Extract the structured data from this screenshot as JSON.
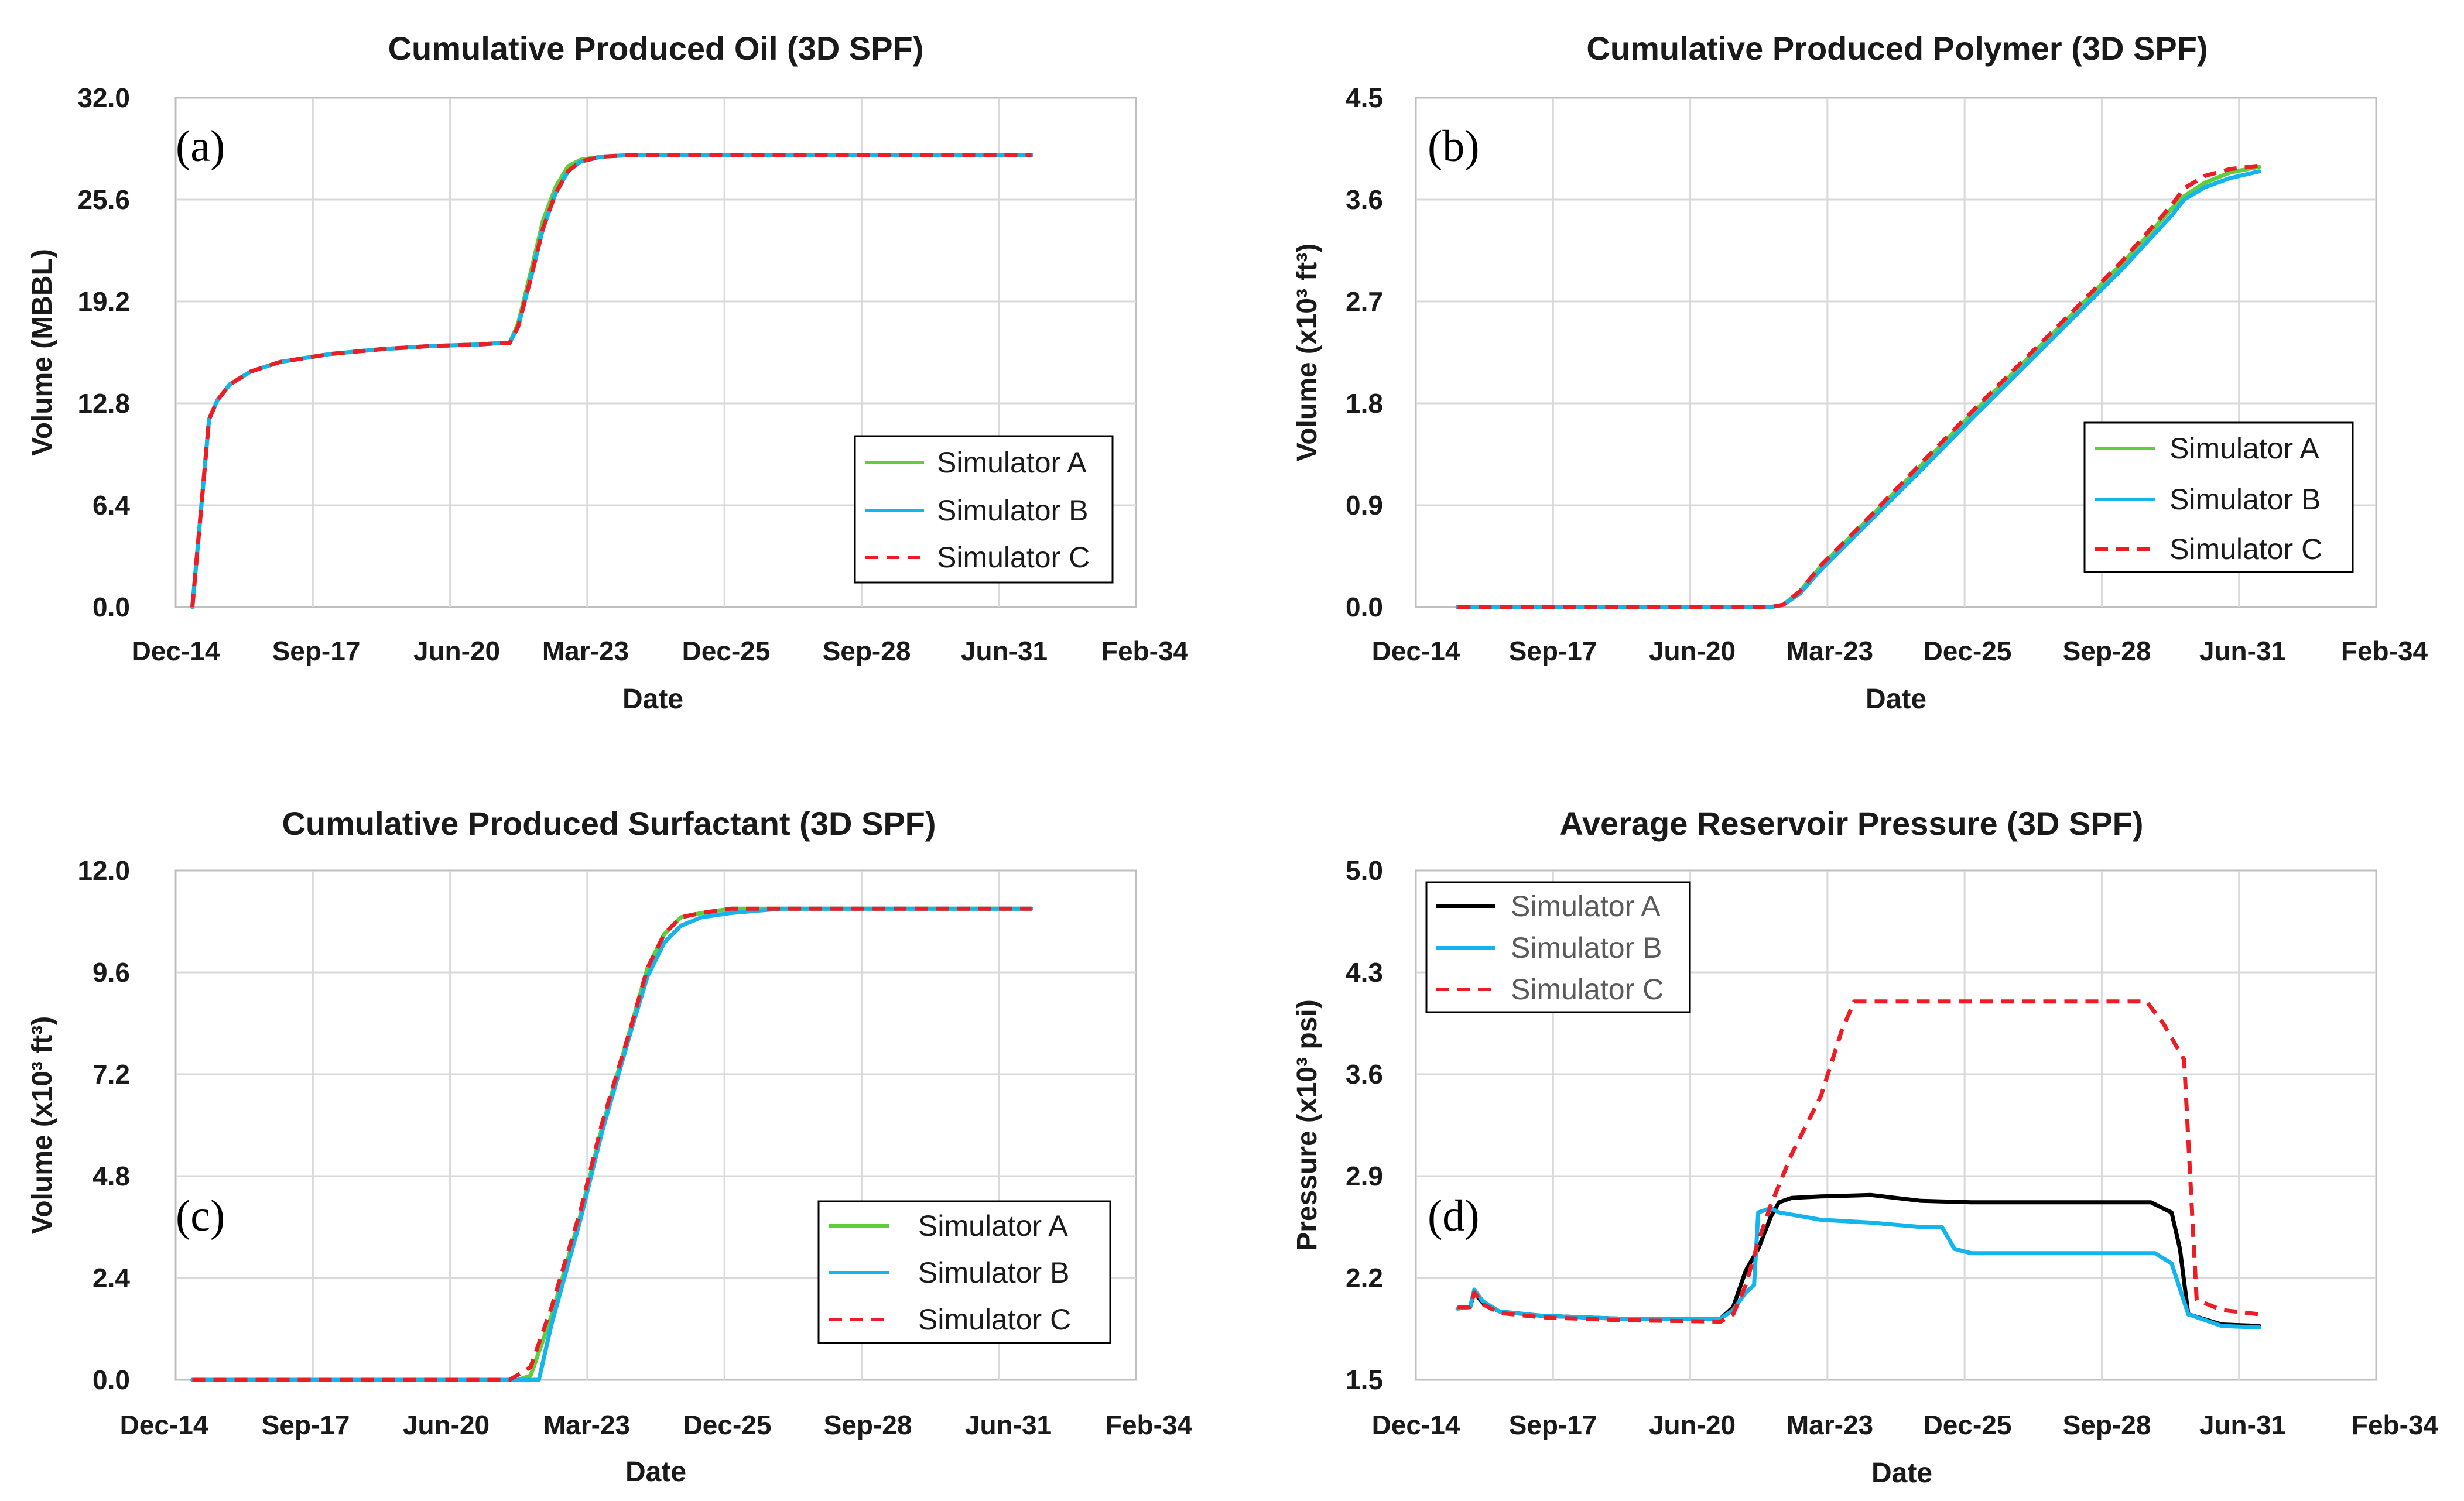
{
  "colors": {
    "simulator_a_green": "#5fce3c",
    "simulator_a_black": "#000000",
    "simulator_b": "#14b4ec",
    "simulator_c": "#ee1c24",
    "gridline": "#d9d9d9",
    "plot_border": "#bfbfbf"
  },
  "chart_data": [
    {
      "type": "line",
      "panel_label": "(a)",
      "title": "Cumulative Produced Oil (3D SPF)",
      "xlabel": "Date",
      "ylabel": "Volume (MBBL)",
      "x_ticks": [
        "Dec-14",
        "Sep-17",
        "Jun-20",
        "Mar-23",
        "Dec-25",
        "Sep-28",
        "Jun-31",
        "Feb-34"
      ],
      "y_ticks": [
        "0.0",
        "6.4",
        "12.8",
        "19.2",
        "25.6",
        "32.0"
      ],
      "xlim": [
        "2014-12",
        "2034-02"
      ],
      "ylim": [
        0,
        32
      ],
      "grid": true,
      "legend_position": "lower-right",
      "series": [
        {
          "name": "Simulator A",
          "style": "solid",
          "color_key": "simulator_a_green",
          "x": [
            "2015-04",
            "2015-08",
            "2015-10",
            "2016-01",
            "2016-06",
            "2017-01",
            "2018-01",
            "2019-01",
            "2020-01",
            "2021-01",
            "2021-06",
            "2021-08",
            "2021-10",
            "2022-01",
            "2022-04",
            "2022-07",
            "2022-10",
            "2023-01",
            "2023-06",
            "2024-01",
            "2025-01",
            "2026-01",
            "2027-01",
            "2028-01",
            "2029-01",
            "2030-01",
            "2031-01",
            "2032-01"
          ],
          "y": [
            0,
            11.8,
            13.0,
            14.0,
            14.8,
            15.4,
            15.9,
            16.2,
            16.4,
            16.5,
            16.6,
            16.6,
            17.8,
            21.0,
            24.3,
            26.4,
            27.7,
            28.1,
            28.3,
            28.4,
            28.4,
            28.4,
            28.4,
            28.4,
            28.4,
            28.4,
            28.4,
            28.4
          ]
        },
        {
          "name": "Simulator B",
          "style": "solid",
          "color_key": "simulator_b",
          "x": [
            "2015-04",
            "2015-08",
            "2015-10",
            "2016-01",
            "2016-06",
            "2017-01",
            "2018-01",
            "2019-01",
            "2020-01",
            "2021-01",
            "2021-06",
            "2021-08",
            "2021-10",
            "2022-01",
            "2022-04",
            "2022-07",
            "2022-10",
            "2023-01",
            "2023-06",
            "2024-01",
            "2025-01",
            "2026-01",
            "2027-01",
            "2028-01",
            "2029-01",
            "2030-01",
            "2031-01",
            "2032-01"
          ],
          "y": [
            0,
            11.8,
            13.0,
            14.0,
            14.8,
            15.4,
            15.9,
            16.2,
            16.4,
            16.5,
            16.6,
            16.6,
            17.6,
            20.6,
            23.8,
            26.0,
            27.4,
            28.0,
            28.3,
            28.4,
            28.4,
            28.4,
            28.4,
            28.4,
            28.4,
            28.4,
            28.4,
            28.4
          ]
        },
        {
          "name": "Simulator C",
          "style": "dashed",
          "color_key": "simulator_c",
          "x": [
            "2015-04",
            "2015-08",
            "2015-10",
            "2016-01",
            "2016-06",
            "2017-01",
            "2018-01",
            "2019-01",
            "2020-01",
            "2021-01",
            "2021-06",
            "2021-08",
            "2021-10",
            "2022-01",
            "2022-04",
            "2022-07",
            "2022-10",
            "2023-01",
            "2023-06",
            "2024-01",
            "2025-01",
            "2026-01",
            "2027-01",
            "2028-01",
            "2029-01",
            "2030-01",
            "2031-01",
            "2032-01"
          ],
          "y": [
            0,
            11.8,
            13.0,
            14.0,
            14.8,
            15.4,
            15.9,
            16.2,
            16.4,
            16.5,
            16.6,
            16.6,
            17.6,
            20.6,
            23.8,
            26.0,
            27.4,
            28.0,
            28.3,
            28.4,
            28.4,
            28.4,
            28.4,
            28.4,
            28.4,
            28.4,
            28.4,
            28.4
          ]
        }
      ]
    },
    {
      "type": "line",
      "panel_label": "(b)",
      "title": "Cumulative Produced Polymer (3D SPF)",
      "xlabel": "Date",
      "ylabel": "Volume (x10³ ft³)",
      "x_ticks": [
        "Dec-14",
        "Sep-17",
        "Jun-20",
        "Mar-23",
        "Dec-25",
        "Sep-28",
        "Jun-31",
        "Feb-34"
      ],
      "y_ticks": [
        "0.0",
        "0.9",
        "1.8",
        "2.7",
        "3.6",
        "4.5"
      ],
      "xlim": [
        "2014-12",
        "2034-02"
      ],
      "ylim": [
        0,
        4.5
      ],
      "grid": true,
      "legend_position": "middle-right",
      "series": [
        {
          "name": "Simulator A",
          "style": "solid",
          "color_key": "simulator_a_green",
          "x": [
            "2015-10",
            "2019-01",
            "2022-01",
            "2022-04",
            "2022-08",
            "2023-01",
            "2024-01",
            "2025-01",
            "2026-01",
            "2027-01",
            "2028-01",
            "2029-01",
            "2029-07",
            "2030-01",
            "2030-04",
            "2030-09",
            "2031-03",
            "2031-10"
          ],
          "y": [
            0,
            0,
            0,
            0.02,
            0.14,
            0.36,
            0.8,
            1.25,
            1.7,
            2.14,
            2.58,
            3.03,
            3.27,
            3.52,
            3.63,
            3.75,
            3.84,
            3.89
          ]
        },
        {
          "name": "Simulator B",
          "style": "solid",
          "color_key": "simulator_b",
          "x": [
            "2015-10",
            "2019-01",
            "2022-01",
            "2022-04",
            "2022-08",
            "2023-01",
            "2024-01",
            "2025-01",
            "2026-01",
            "2027-01",
            "2028-01",
            "2029-01",
            "2029-07",
            "2030-01",
            "2030-04",
            "2030-09",
            "2031-03",
            "2031-10"
          ],
          "y": [
            0,
            0,
            0,
            0.02,
            0.12,
            0.33,
            0.77,
            1.21,
            1.66,
            2.1,
            2.54,
            2.98,
            3.22,
            3.46,
            3.6,
            3.71,
            3.79,
            3.85
          ]
        },
        {
          "name": "Simulator C",
          "style": "dashed",
          "color_key": "simulator_c",
          "x": [
            "2015-10",
            "2019-01",
            "2022-01",
            "2022-04",
            "2022-08",
            "2023-01",
            "2024-01",
            "2025-01",
            "2026-01",
            "2027-01",
            "2028-01",
            "2029-01",
            "2029-07",
            "2030-01",
            "2030-04",
            "2030-09",
            "2031-03",
            "2031-10"
          ],
          "y": [
            0,
            0,
            0,
            0.02,
            0.14,
            0.37,
            0.81,
            1.27,
            1.72,
            2.16,
            2.6,
            3.05,
            3.3,
            3.55,
            3.7,
            3.81,
            3.87,
            3.9
          ]
        }
      ]
    },
    {
      "type": "line",
      "panel_label": "(c)",
      "title": "Cumulative Produced Surfactant (3D SPF)",
      "xlabel": "Date",
      "ylabel": "Volume (x10³ ft³)",
      "x_ticks": [
        "Dec-14",
        "Sep-17",
        "Jun-20",
        "Mar-23",
        "Dec-25",
        "Sep-28",
        "Jun-31",
        "Feb-34"
      ],
      "y_ticks": [
        "0.0",
        "2.4",
        "4.8",
        "7.2",
        "9.6",
        "12.0"
      ],
      "xlim": [
        "2014-12",
        "2034-02"
      ],
      "ylim": [
        0,
        12
      ],
      "grid": true,
      "legend_position": "lower-right",
      "series": [
        {
          "name": "Simulator A",
          "style": "solid",
          "color_key": "simulator_a_green",
          "x": [
            "2015-04",
            "2019-01",
            "2021-10",
            "2022-01",
            "2022-06",
            "2023-01",
            "2023-06",
            "2024-01",
            "2024-05",
            "2024-09",
            "2025-01",
            "2025-06",
            "2026-01",
            "2027-01",
            "2028-01",
            "2029-01",
            "2030-01",
            "2031-01",
            "2032-01"
          ],
          "y": [
            0,
            0,
            0,
            0.1,
            1.5,
            3.9,
            5.9,
            8.3,
            9.7,
            10.5,
            10.9,
            11.0,
            11.1,
            11.1,
            11.1,
            11.1,
            11.1,
            11.1,
            11.1
          ]
        },
        {
          "name": "Simulator B",
          "style": "solid",
          "color_key": "simulator_b",
          "x": [
            "2015-04",
            "2019-01",
            "2022-01",
            "2022-03",
            "2022-06",
            "2023-01",
            "2023-06",
            "2024-01",
            "2024-05",
            "2024-09",
            "2025-01",
            "2025-06",
            "2026-01",
            "2027-01",
            "2028-01",
            "2029-01",
            "2030-01",
            "2031-01",
            "2032-01"
          ],
          "y": [
            0,
            0,
            0,
            0,
            1.3,
            3.8,
            5.8,
            8.2,
            9.5,
            10.3,
            10.7,
            10.9,
            11.0,
            11.1,
            11.1,
            11.1,
            11.1,
            11.1,
            11.1
          ]
        },
        {
          "name": "Simulator C",
          "style": "dashed",
          "color_key": "simulator_c",
          "x": [
            "2015-04",
            "2019-01",
            "2021-08",
            "2022-01",
            "2022-06",
            "2023-01",
            "2023-06",
            "2024-01",
            "2024-05",
            "2024-09",
            "2025-01",
            "2025-06",
            "2026-01",
            "2027-01",
            "2028-01",
            "2029-01",
            "2030-01",
            "2031-01",
            "2032-01"
          ],
          "y": [
            0,
            0,
            0,
            0.3,
            1.7,
            4.0,
            6.0,
            8.3,
            9.7,
            10.5,
            10.9,
            11.0,
            11.1,
            11.1,
            11.1,
            11.1,
            11.1,
            11.1,
            11.1
          ]
        }
      ]
    },
    {
      "type": "line",
      "panel_label": "(d)",
      "title": "Average Reservoir Pressure (3D SPF)",
      "xlabel": "Date",
      "ylabel": "Pressure (x10³ psi)",
      "x_ticks": [
        "Dec-14",
        "Sep-17",
        "Jun-20",
        "Mar-23",
        "Dec-25",
        "Sep-28",
        "Jun-31",
        "Feb-34"
      ],
      "y_ticks": [
        "1.5",
        "2.2",
        "2.9",
        "3.6",
        "4.3",
        "5.0"
      ],
      "xlim": [
        "2014-12",
        "2034-02"
      ],
      "ylim": [
        1.5,
        5.0
      ],
      "grid": true,
      "legend_position": "upper-left",
      "series": [
        {
          "name": "Simulator A",
          "style": "solid",
          "color_key": "simulator_a_black",
          "x": [
            "2015-10",
            "2016-01",
            "2016-02",
            "2016-04",
            "2016-08",
            "2017-06",
            "2019-01",
            "2021-01",
            "2021-04",
            "2021-07",
            "2021-10",
            "2022-01",
            "2022-03",
            "2022-06",
            "2023-01",
            "2024-01",
            "2025-01",
            "2026-01",
            "2027-01",
            "2028-01",
            "2029-01",
            "2029-08",
            "2030-01",
            "2030-03",
            "2030-05",
            "2031-01",
            "2031-10"
          ],
          "y": [
            1.99,
            2.0,
            2.1,
            2.03,
            1.97,
            1.94,
            1.92,
            1.92,
            2.0,
            2.25,
            2.4,
            2.62,
            2.72,
            2.75,
            2.76,
            2.77,
            2.73,
            2.72,
            2.72,
            2.72,
            2.72,
            2.72,
            2.65,
            2.4,
            1.95,
            1.88,
            1.87
          ]
        },
        {
          "name": "Simulator B",
          "style": "solid",
          "color_key": "simulator_b",
          "x": [
            "2015-10",
            "2016-01",
            "2016-02",
            "2016-04",
            "2016-08",
            "2017-06",
            "2019-01",
            "2021-01",
            "2021-04",
            "2021-07",
            "2021-09",
            "2021-10",
            "2022-01",
            "2022-03",
            "2023-01",
            "2024-01",
            "2025-01",
            "2025-06",
            "2025-09",
            "2026-01",
            "2027-01",
            "2028-01",
            "2029-01",
            "2029-09",
            "2030-01",
            "2030-05",
            "2031-01",
            "2031-10"
          ],
          "y": [
            1.99,
            2.0,
            2.12,
            2.04,
            1.97,
            1.94,
            1.92,
            1.92,
            1.98,
            2.1,
            2.15,
            2.65,
            2.68,
            2.65,
            2.6,
            2.58,
            2.55,
            2.55,
            2.4,
            2.37,
            2.37,
            2.37,
            2.37,
            2.37,
            2.3,
            1.95,
            1.87,
            1.86
          ]
        },
        {
          "name": "Simulator C",
          "style": "dashed",
          "color_key": "simulator_c",
          "x": [
            "2015-10",
            "2016-01",
            "2016-02",
            "2016-04",
            "2016-08",
            "2017-06",
            "2019-01",
            "2021-01",
            "2021-04",
            "2021-07",
            "2021-10",
            "2022-01",
            "2022-06",
            "2023-01",
            "2023-06",
            "2023-09",
            "2024-01",
            "2025-01",
            "2026-01",
            "2027-01",
            "2028-01",
            "2029-01",
            "2029-07",
            "2029-11",
            "2030-04",
            "2030-07",
            "2031-01",
            "2031-10"
          ],
          "y": [
            2.0,
            2.0,
            2.1,
            2.02,
            1.96,
            1.93,
            1.91,
            1.9,
            1.95,
            2.15,
            2.45,
            2.7,
            3.05,
            3.45,
            3.9,
            4.1,
            4.1,
            4.1,
            4.1,
            4.1,
            4.1,
            4.1,
            4.1,
            3.95,
            3.7,
            2.05,
            1.98,
            1.95
          ]
        }
      ]
    }
  ]
}
